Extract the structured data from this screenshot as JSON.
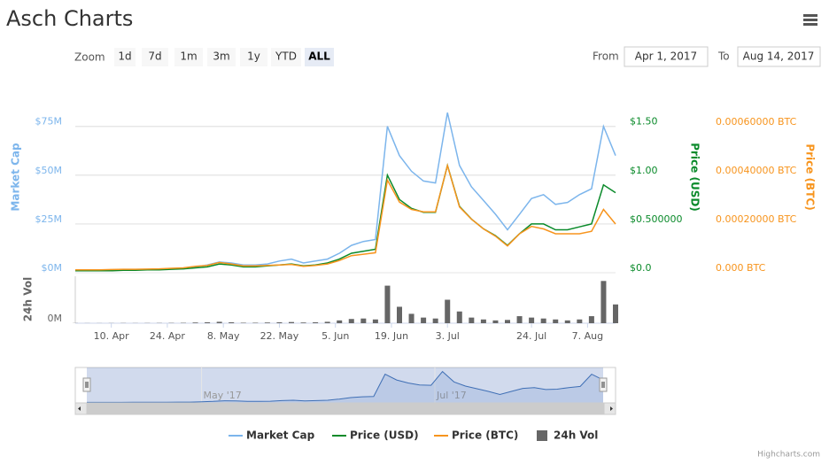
{
  "title": "Asch Charts",
  "range_selector": {
    "zoom_label": "Zoom",
    "buttons": [
      "1d",
      "7d",
      "1m",
      "3m",
      "1y",
      "YTD",
      "ALL"
    ],
    "selected": "ALL",
    "from_label": "From",
    "from": "Apr 1, 2017",
    "to_label": "To",
    "to": "Aug 14, 2017"
  },
  "chart_data": {
    "type": "line",
    "x": [
      "2017-04-01",
      "2017-04-04",
      "2017-04-07",
      "2017-04-10",
      "2017-04-13",
      "2017-04-16",
      "2017-04-19",
      "2017-04-22",
      "2017-04-25",
      "2017-04-28",
      "2017-05-01",
      "2017-05-04",
      "2017-05-07",
      "2017-05-10",
      "2017-05-13",
      "2017-05-16",
      "2017-05-19",
      "2017-05-22",
      "2017-05-25",
      "2017-05-28",
      "2017-05-31",
      "2017-06-03",
      "2017-06-06",
      "2017-06-09",
      "2017-06-12",
      "2017-06-15",
      "2017-06-18",
      "2017-06-21",
      "2017-06-24",
      "2017-06-27",
      "2017-06-30",
      "2017-07-03",
      "2017-07-06",
      "2017-07-09",
      "2017-07-12",
      "2017-07-15",
      "2017-07-18",
      "2017-07-21",
      "2017-07-24",
      "2017-07-27",
      "2017-07-30",
      "2017-08-02",
      "2017-08-05",
      "2017-08-08",
      "2017-08-11",
      "2017-08-14"
    ],
    "xlim": [
      "2017-04-01",
      "2017-08-14"
    ],
    "xticks": [
      {
        "value": "2017-04-10",
        "label": "10. Apr"
      },
      {
        "value": "2017-04-24",
        "label": "24. Apr"
      },
      {
        "value": "2017-05-08",
        "label": "8. May"
      },
      {
        "value": "2017-05-22",
        "label": "22. May"
      },
      {
        "value": "2017-06-05",
        "label": "5. Jun"
      },
      {
        "value": "2017-06-19",
        "label": "19. Jun"
      },
      {
        "value": "2017-07-03",
        "label": "3. Jul"
      },
      {
        "value": "2017-07-24",
        "label": "24. Jul"
      },
      {
        "value": "2017-08-07",
        "label": "7. Aug"
      }
    ],
    "y_title": "Market Cap",
    "ylim": [
      0,
      88000000
    ],
    "yticks": [
      {
        "value": 0,
        "label": "$0M"
      },
      {
        "value": 25000000,
        "label": "$25M"
      },
      {
        "value": 50000000,
        "label": "$50M"
      },
      {
        "value": 75000000,
        "label": "$75M"
      }
    ],
    "y2_title": "Price (USD)",
    "y2lim": [
      0,
      1.76
    ],
    "y2ticks": [
      {
        "value": 0,
        "label": "$0.0"
      },
      {
        "value": 0.5,
        "label": "$0.500000"
      },
      {
        "value": 1,
        "label": "$1.00"
      },
      {
        "value": 1.5,
        "label": "$1.50"
      }
    ],
    "y3_title": "Price (BTC)",
    "y3lim": [
      0,
      0.000705
    ],
    "y3ticks": [
      {
        "value": 0,
        "label": "0.000 BTC"
      },
      {
        "value": 0.0002,
        "label": "0.00020000 BTC"
      },
      {
        "value": 0.0004,
        "label": "0.00040000 BTC"
      },
      {
        "value": 0.0006,
        "label": "0.00060000 BTC"
      }
    ],
    "y4_title": "24h Vol",
    "y4lim": [
      0,
      1000000
    ],
    "y4ticks": [
      {
        "value": 0,
        "label": "0M"
      }
    ],
    "grid": true,
    "series": [
      {
        "name": "Market Cap",
        "color": "#7cb5ec",
        "values": [
          1500000,
          1500000,
          1400000,
          1500000,
          1600000,
          1600000,
          1700000,
          1800000,
          2000000,
          2000000,
          3000000,
          4000000,
          5500000,
          5000000,
          4000000,
          4000000,
          4500000,
          6000000,
          7000000,
          5000000,
          6000000,
          7000000,
          10000000,
          14000000,
          16000000,
          17000000,
          75000000,
          60000000,
          52000000,
          47000000,
          46000000,
          82000000,
          55000000,
          44000000,
          37000000,
          30000000,
          22000000,
          30000000,
          38000000,
          40000000,
          35000000,
          36000000,
          40000000,
          43000000,
          75000000,
          60000000
        ]
      },
      {
        "name": "Price (USD)",
        "color": "#0a8a2a",
        "axis": "y2",
        "values": [
          0.02,
          0.02,
          0.02,
          0.02,
          0.025,
          0.025,
          0.03,
          0.03,
          0.035,
          0.04,
          0.05,
          0.06,
          0.09,
          0.08,
          0.06,
          0.06,
          0.07,
          0.08,
          0.09,
          0.07,
          0.08,
          0.1,
          0.14,
          0.2,
          0.22,
          0.24,
          1.0,
          0.75,
          0.66,
          0.62,
          0.62,
          1.1,
          0.68,
          0.55,
          0.45,
          0.38,
          0.28,
          0.4,
          0.5,
          0.5,
          0.44,
          0.44,
          0.47,
          0.5,
          0.9,
          0.82
        ]
      },
      {
        "name": "Price (BTC)",
        "color": "#f7941d",
        "axis": "y3",
        "values": [
          1.2e-05,
          1.2e-05,
          1.2e-05,
          1.3e-05,
          1.4e-05,
          1.4e-05,
          1.5e-05,
          1.6e-05,
          1.8e-05,
          2e-05,
          2.6e-05,
          3e-05,
          4.2e-05,
          3.6e-05,
          2.8e-05,
          2.8e-05,
          3e-05,
          3.2e-05,
          3.4e-05,
          2.6e-05,
          3e-05,
          3.6e-05,
          5e-05,
          7e-05,
          7.6e-05,
          8.2e-05,
          0.00038,
          0.00029,
          0.00026,
          0.00025,
          0.00025,
          0.00044,
          0.00027,
          0.00022,
          0.00018,
          0.00015,
          0.00011,
          0.00016,
          0.00019,
          0.00018,
          0.00016,
          0.00016,
          0.00016,
          0.00017,
          0.00026,
          0.0002
        ]
      },
      {
        "name": "24h Vol",
        "color": "#666666",
        "axis": "y4",
        "type": "column",
        "values": [
          3000,
          2000,
          2000,
          3000,
          4000,
          3000,
          4000,
          5000,
          6000,
          8000,
          15000,
          20000,
          30000,
          20000,
          10000,
          10000,
          15000,
          20000,
          25000,
          15000,
          20000,
          30000,
          60000,
          90000,
          100000,
          80000,
          800000,
          350000,
          200000,
          120000,
          100000,
          500000,
          250000,
          120000,
          80000,
          60000,
          70000,
          150000,
          120000,
          100000,
          80000,
          60000,
          80000,
          150000,
          900000,
          400000
        ]
      }
    ]
  },
  "navigator": {
    "xticks": [
      {
        "value": "2017-05-01",
        "label": "May '17"
      },
      {
        "value": "2017-07-01",
        "label": "Jul '17"
      }
    ]
  },
  "credits": "Highcharts.com"
}
